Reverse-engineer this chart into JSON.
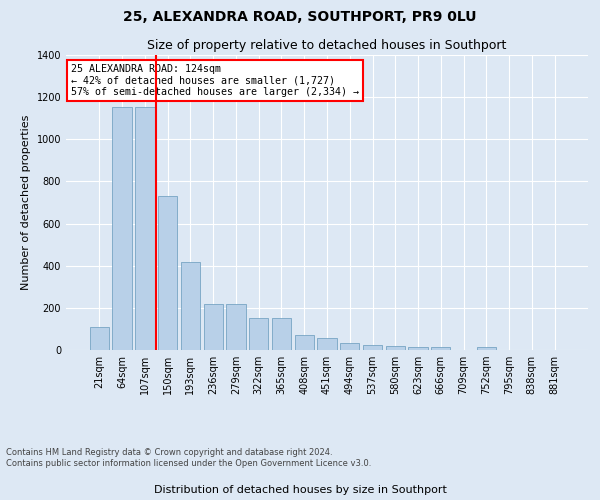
{
  "title": "25, ALEXANDRA ROAD, SOUTHPORT, PR9 0LU",
  "subtitle": "Size of property relative to detached houses in Southport",
  "xlabel": "Distribution of detached houses by size in Southport",
  "ylabel": "Number of detached properties",
  "footnote1": "Contains HM Land Registry data © Crown copyright and database right 2024.",
  "footnote2": "Contains public sector information licensed under the Open Government Licence v3.0.",
  "categories": [
    "21sqm",
    "64sqm",
    "107sqm",
    "150sqm",
    "193sqm",
    "236sqm",
    "279sqm",
    "322sqm",
    "365sqm",
    "408sqm",
    "451sqm",
    "494sqm",
    "537sqm",
    "580sqm",
    "623sqm",
    "666sqm",
    "709sqm",
    "752sqm",
    "795sqm",
    "838sqm",
    "881sqm"
  ],
  "values": [
    107,
    1155,
    1155,
    730,
    420,
    220,
    220,
    150,
    150,
    70,
    55,
    35,
    25,
    18,
    15,
    13,
    0,
    13,
    0,
    0,
    0
  ],
  "bar_color": "#b8d0e8",
  "bar_edgecolor": "#6699bb",
  "vline_x": 2.5,
  "vline_color": "red",
  "annotation_text": "25 ALEXANDRA ROAD: 124sqm\n← 42% of detached houses are smaller (1,727)\n57% of semi-detached houses are larger (2,334) →",
  "annotation_box_color": "white",
  "annotation_box_edgecolor": "red",
  "ylim": [
    0,
    1400
  ],
  "yticks": [
    0,
    200,
    400,
    600,
    800,
    1000,
    1200,
    1400
  ],
  "background_color": "#dde8f4",
  "axes_background": "#dde8f4",
  "grid_color": "white",
  "title_fontsize": 10,
  "subtitle_fontsize": 9,
  "ylabel_fontsize": 8,
  "xlabel_fontsize": 8,
  "tick_fontsize": 7,
  "footnote_fontsize": 6
}
